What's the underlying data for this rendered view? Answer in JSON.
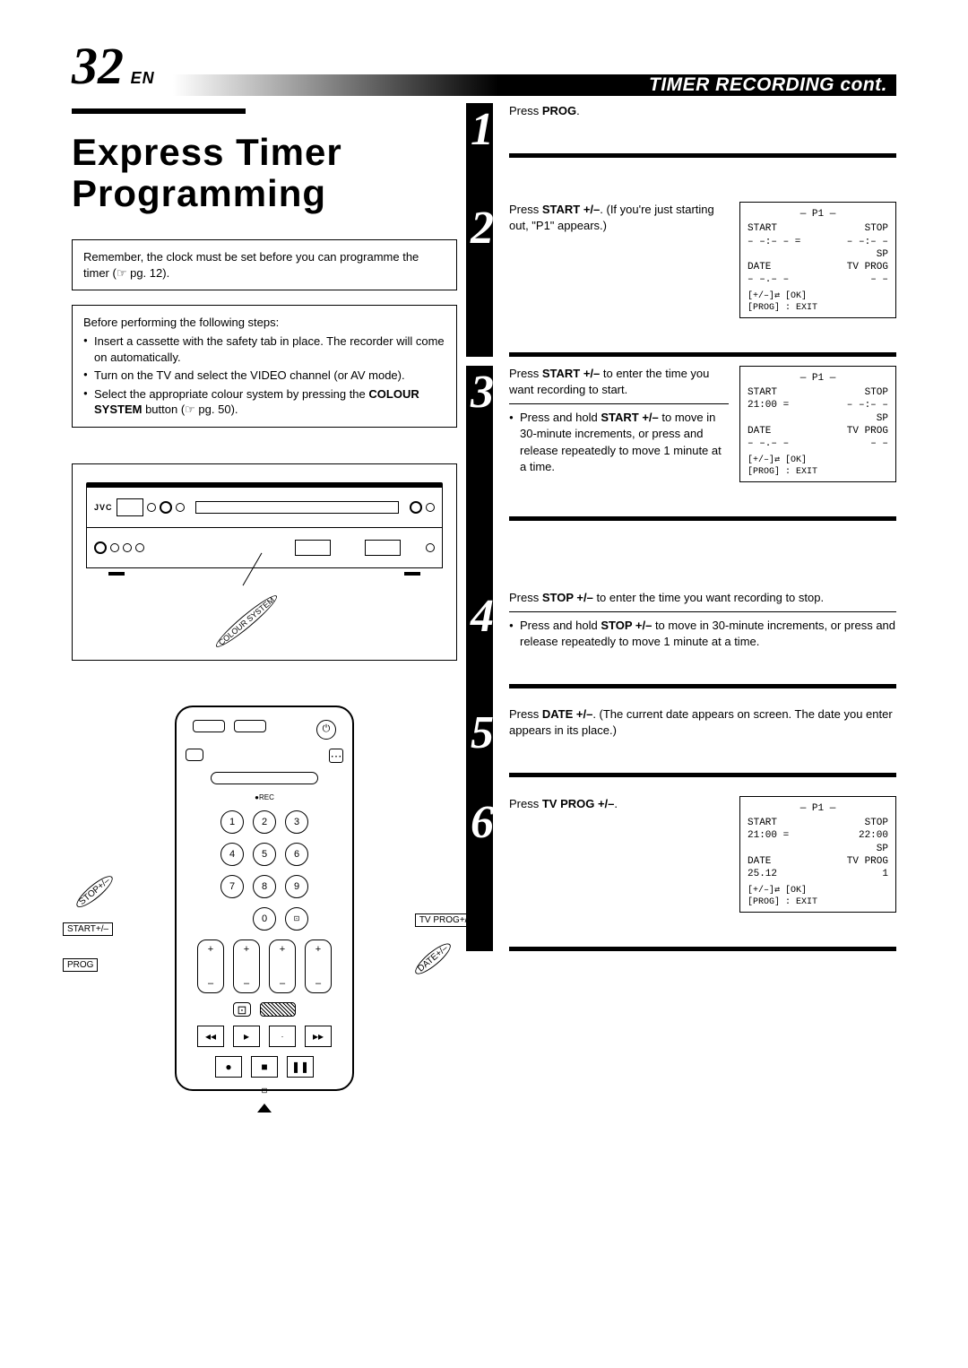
{
  "header": {
    "page_number": "32",
    "lang": "EN",
    "section_title": "TIMER RECORDING cont."
  },
  "title": "Express Timer Programming",
  "note_box": "Remember, the clock must be set before you can programme the timer (☞ pg. 12).",
  "prep": {
    "intro": "Before performing the following steps:",
    "items": [
      "Insert a cassette with the safety tab in place. The recorder will come on automatically.",
      "Turn on the TV and select the VIDEO channel (or AV mode).",
      "Select the appropriate colour system by pressing the COLOUR SYSTEM button (☞ pg. 50)."
    ]
  },
  "vcr": {
    "brand": "JVC",
    "callout_colour_system": "COLOUR SYSTEM"
  },
  "remote": {
    "digits": [
      "1",
      "2",
      "3",
      "4",
      "5",
      "6",
      "7",
      "8",
      "9",
      "0"
    ],
    "plusminus": {
      "plus": "+",
      "minus": "–"
    },
    "callouts": {
      "stop": "STOP+/–",
      "start": "START+/–",
      "prog": "PROG",
      "tvprog": "TV PROG+/–",
      "date": "DATE+/–"
    }
  },
  "steps": [
    {
      "num": "1",
      "text_html": "Press <b>PROG</b>.",
      "osd": null
    },
    {
      "num": "2",
      "text_html": "Press <b>START +/–</b>. (If you're just starting out, \"P1\" appears.)",
      "osd": {
        "title": "— P1 —",
        "start_lbl": "START",
        "stop_lbl": "STOP",
        "start_val": "– –:– – =",
        "stop_val": "– –:– –",
        "sp": "SP",
        "date_lbl": "DATE",
        "date_val": "– –.– –",
        "tvprog_lbl": "TV PROG",
        "tvprog_val": "– –",
        "foot1": "[+/–]⇄  [OK]",
        "foot2": "[PROG] : EXIT"
      }
    },
    {
      "num": "3",
      "text_html": "Press <b>START +/–</b> to enter the time you want recording to start.",
      "bullets": [
        "Press and hold <b>START +/–</b> to move in 30-minute increments, or press and release repeatedly to move 1 minute at a time."
      ],
      "osd": {
        "title": "— P1 —",
        "start_lbl": "START",
        "stop_lbl": "STOP",
        "start_val": "21:00   =",
        "stop_val": "– –:– –",
        "sp": "SP",
        "date_lbl": "DATE",
        "date_val": "– –.– –",
        "tvprog_lbl": "TV PROG",
        "tvprog_val": "– –",
        "foot1": "[+/–]⇄  [OK]",
        "foot2": "[PROG] : EXIT"
      }
    },
    {
      "num": "4",
      "text_html": "Press <b>STOP +/–</b> to enter the time you want recording to stop.",
      "bullets": [
        "Press and hold <b>STOP +/–</b> to move in 30-minute increments, or press and release repeatedly to move 1 minute at a time."
      ],
      "osd": null
    },
    {
      "num": "5",
      "text_html": "Press <b>DATE +/–</b>. (The current date appears on screen. The date you enter appears in its place.)",
      "osd": null
    },
    {
      "num": "6",
      "text_html": "Press <b>TV PROG +/–</b>.",
      "osd": {
        "title": "— P1 —",
        "start_lbl": "START",
        "stop_lbl": "STOP",
        "start_val": "21:00   =",
        "stop_val": "22:00",
        "sp": "SP",
        "date_lbl": "DATE",
        "date_val": "25.12",
        "tvprog_lbl": "TV PROG",
        "tvprog_val": "1",
        "foot1": "[+/–]⇄  [OK]",
        "foot2": "[PROG] : EXIT"
      }
    }
  ],
  "colors": {
    "black": "#000000",
    "white": "#ffffff"
  }
}
